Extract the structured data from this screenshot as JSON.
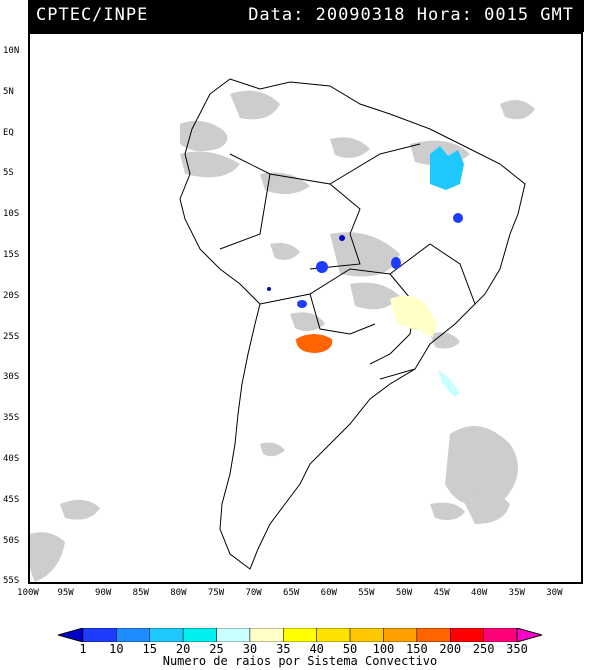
{
  "header": {
    "app_name": "CPTEC/INPE",
    "date_time": "Data: 20090318 Hora: 0015 GMT"
  },
  "map": {
    "latitude_labels": [
      "10N",
      "5N",
      "EQ",
      "5S",
      "10S",
      "15S",
      "20S",
      "25S",
      "30S",
      "35S",
      "40S",
      "45S",
      "50S",
      "55S"
    ],
    "longitude_labels": [
      "100W",
      "95W",
      "90W",
      "85W",
      "80W",
      "75W",
      "70W",
      "65W",
      "60W",
      "55W",
      "50W",
      "45W",
      "40W",
      "35W",
      "30W"
    ],
    "cloud_color": "#c8c8c8",
    "border_color": "#000000"
  },
  "legend": {
    "title": "Numero de raios por Sistema Convectivo",
    "ticks": [
      "1",
      "10",
      "15",
      "20",
      "25",
      "30",
      "35",
      "40",
      "50",
      "100",
      "150",
      "200",
      "250",
      "350"
    ],
    "colors": [
      "#0000c8",
      "#1e3cff",
      "#1e8cff",
      "#1ec8ff",
      "#00f0f0",
      "#c8ffff",
      "#ffffc8",
      "#ffff00",
      "#ffe100",
      "#ffc800",
      "#ffa000",
      "#ff6400",
      "#ff0000",
      "#ff0078",
      "#ff00c8"
    ]
  }
}
